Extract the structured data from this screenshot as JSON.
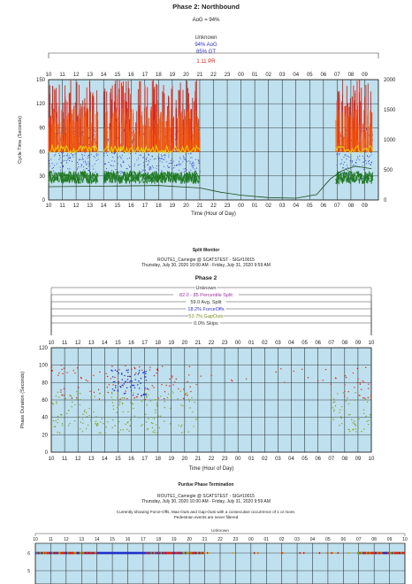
{
  "colors": {
    "plot_bg": "#bfe0ee",
    "grid": "#1a1a1a",
    "blue_text": "#2d2dc8",
    "purple_text": "#a030a0",
    "olive_text": "#7a8a18",
    "red": "#e02010",
    "green": "#1e7a1e",
    "blue": "#2030c8",
    "yellow": "#e8d000",
    "tick_blue": "#2030c8"
  },
  "chart_data": [
    {
      "type": "scatter",
      "title": "Phase 2: Northbound",
      "subtitle": "AoG = 94%",
      "legend": [
        "Unknown",
        "94% AoG",
        "85% GT",
        "1.11 PR"
      ],
      "legend_placement": "top-center",
      "xlabel": "Time (Hour of Day)",
      "ylabel": "Cycle Time (Seconds)",
      "ylim": [
        0,
        150
      ],
      "y_ticks": [
        "150",
        "120",
        "90",
        "60",
        "30",
        "0"
      ],
      "y2lim": [
        0,
        2000
      ],
      "y2_ticks": [
        "2000",
        "1500",
        "1000",
        "500",
        "0"
      ],
      "x_ticks": [
        "10",
        "11",
        "12",
        "13",
        "14",
        "15",
        "16",
        "17",
        "18",
        "19",
        "20",
        "21",
        "22",
        "23",
        "00",
        "01",
        "02",
        "03",
        "04",
        "05",
        "06",
        "07",
        "08",
        "09"
      ],
      "grid": true,
      "active_hour_segments": [
        [
          0,
          3.6
        ],
        [
          4,
          11
        ],
        [
          20.9,
          23.6
        ]
      ],
      "series": [
        {
          "name": "Red cycle spikes",
          "color": "red",
          "typical_range": [
            60,
            150
          ]
        },
        {
          "name": "Yellow band",
          "color": "yellow",
          "typical_value": 62
        },
        {
          "name": "Green band",
          "color": "green",
          "typical_value": 28
        },
        {
          "name": "Arrival points",
          "color": "blue",
          "typical_range": [
            25,
            90
          ]
        }
      ],
      "volume_series_points": [
        {
          "x": 0,
          "y2": 220
        },
        {
          "x": 4,
          "y2": 230
        },
        {
          "x": 8,
          "y2": 240
        },
        {
          "x": 11,
          "y2": 200
        },
        {
          "x": 12.5,
          "y2": 130
        },
        {
          "x": 14,
          "y2": 80
        },
        {
          "x": 16,
          "y2": 40
        },
        {
          "x": 18,
          "y2": 30
        },
        {
          "x": 19.5,
          "y2": 90
        },
        {
          "x": 20.5,
          "y2": 350
        },
        {
          "x": 21.3,
          "y2": 480
        },
        {
          "x": 22.3,
          "y2": 560
        },
        {
          "x": 23.5,
          "y2": 520
        }
      ]
    },
    {
      "type": "scatter",
      "title": "Split Monitor",
      "subtitle_line1": "ROUTE1_Carnegie @ SCATSTEST - SIG#10015",
      "subtitle_line2": "Thursday, July 30, 2020 10:00 AM - Friday, July 31, 2020 9:59 AM",
      "phase_title": "Phase 2",
      "legend": [
        {
          "text": "Unknown",
          "color": "#333333"
        },
        {
          "text": "82.0 - 85 Percentile Split",
          "color": "#a030a0"
        },
        {
          "text": "59.0 Avg. Split",
          "color": "#333333"
        },
        {
          "text": "18.2% ForceOffs",
          "color": "#2d2dc8"
        },
        {
          "text": "53.7% GapOuts",
          "color": "#7a8a18"
        },
        {
          "text": "0.0% Skips",
          "color": "#333333"
        }
      ],
      "xlabel": "Time (Hour of Day)",
      "ylabel": "Phase Duration (Seconds)",
      "ylim": [
        0,
        120
      ],
      "y_ticks": [
        "120",
        "100",
        "80",
        "60",
        "40",
        "20",
        "0"
      ],
      "x_ticks": [
        "10",
        "11",
        "12",
        "13",
        "14",
        "15",
        "16",
        "17",
        "18",
        "19",
        "20",
        "21",
        "22",
        "23",
        "00",
        "01",
        "02",
        "03",
        "04",
        "05",
        "06",
        "07",
        "08",
        "09",
        "10"
      ],
      "grid": true,
      "series": [
        {
          "name": "ForceOffs",
          "color": "blue",
          "cluster": {
            "x_range": [
              4.5,
              7.2
            ],
            "y_range": [
              65,
              95
            ]
          }
        },
        {
          "name": "GapOuts",
          "color": "olive",
          "typical_range": [
            25,
            70
          ]
        },
        {
          "name": "MaxOuts",
          "color": "red",
          "typical_range": [
            60,
            100
          ]
        }
      ]
    },
    {
      "type": "scatter",
      "title": "Purdue Phase Termination",
      "subtitle_line1": "ROUTE1_Carnegie @ SCATSTEST - SIG#10015",
      "subtitle_line2": "Thursday, July 30, 2020 10:00 AM - Friday, July 31, 2020 9:59 AM",
      "note_line1": "Currently showing Force-Offs, Max-Outs and Gap-Outs with a consecutive occurrence of 1 or more.",
      "note_line2": "Pedestrian events are never filtered",
      "legend": [
        "Unknown"
      ],
      "x_ticks": [
        "10",
        "11",
        "12",
        "13",
        "14",
        "15",
        "16",
        "17",
        "18",
        "19",
        "20",
        "21",
        "22",
        "23",
        "00",
        "01",
        "02",
        "03",
        "04",
        "05",
        "06",
        "07",
        "08",
        "09",
        "10"
      ],
      "y_ticks": [
        "6",
        "5"
      ],
      "grid": true,
      "row_segments_phase6": [
        {
          "from": 0,
          "to": 4,
          "color": "mixed"
        },
        {
          "from": 4,
          "to": 7.2,
          "color": "blue"
        },
        {
          "from": 7.2,
          "to": 11,
          "color": "mixed"
        },
        {
          "from": 20.9,
          "to": 24,
          "color": "mixed"
        }
      ]
    }
  ]
}
